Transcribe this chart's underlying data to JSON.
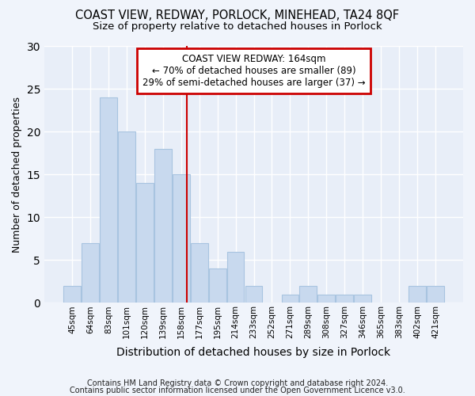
{
  "title1": "COAST VIEW, REDWAY, PORLOCK, MINEHEAD, TA24 8QF",
  "title2": "Size of property relative to detached houses in Porlock",
  "xlabel": "Distribution of detached houses by size in Porlock",
  "ylabel": "Number of detached properties",
  "categories": [
    "45sqm",
    "64sqm",
    "83sqm",
    "101sqm",
    "120sqm",
    "139sqm",
    "158sqm",
    "177sqm",
    "195sqm",
    "214sqm",
    "233sqm",
    "252sqm",
    "271sqm",
    "289sqm",
    "308sqm",
    "327sqm",
    "346sqm",
    "365sqm",
    "383sqm",
    "402sqm",
    "421sqm"
  ],
  "values": [
    2,
    7,
    24,
    20,
    14,
    18,
    15,
    7,
    4,
    6,
    2,
    0,
    1,
    2,
    1,
    1,
    1,
    0,
    0,
    2,
    2
  ],
  "bar_color": "#c8d9ee",
  "bar_edge_color": "#a8c4e0",
  "annotation_line1": "COAST VIEW REDWAY: 164sqm",
  "annotation_line2": "← 70% of detached houses are smaller (89)",
  "annotation_line3": "29% of semi-detached houses are larger (37) →",
  "annotation_box_facecolor": "#ffffff",
  "annotation_box_edgecolor": "#cc0000",
  "ref_line_color": "#cc0000",
  "ylim": [
    0,
    30
  ],
  "yticks": [
    0,
    5,
    10,
    15,
    20,
    25,
    30
  ],
  "fig_background": "#f0f4fb",
  "plot_background": "#e8eef8",
  "grid_color": "#ffffff",
  "footer1": "Contains HM Land Registry data © Crown copyright and database right 2024.",
  "footer2": "Contains public sector information licensed under the Open Government Licence v3.0."
}
